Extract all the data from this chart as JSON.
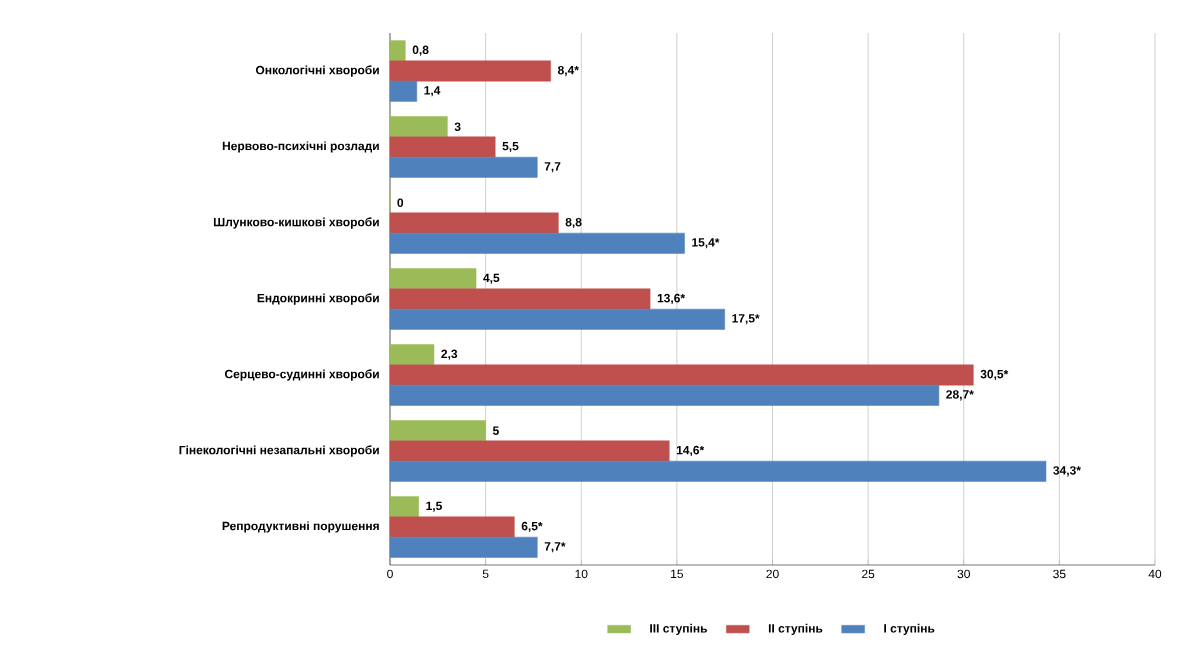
{
  "chart_data": {
    "type": "bar",
    "orientation": "horizontal",
    "categories": [
      "Онкологічні хвороби",
      "Нервово-психічні розлади",
      "Шлунково-кишкові хвороби",
      "Ендокринні хвороби",
      "Серцево-судинні хвороби",
      "Гінекологічні незапальні хвороби",
      "Репродуктивні порушення"
    ],
    "series": [
      {
        "name": "III ступінь",
        "color": "#9bbb59",
        "values": [
          0.8,
          3,
          0,
          4.5,
          2.3,
          5,
          1.5
        ],
        "value_labels": [
          "0,8",
          "3",
          "0",
          "4,5",
          "2,3",
          "5",
          "1,5"
        ]
      },
      {
        "name": "II ступінь",
        "color": "#c0504d",
        "values": [
          8.4,
          5.5,
          8.8,
          13.6,
          30.5,
          14.6,
          6.5
        ],
        "value_labels": [
          "8,4*",
          "5,5",
          "8,8",
          "13,6*",
          "30,5*",
          "14,6*",
          "6,5*"
        ]
      },
      {
        "name": "I ступінь",
        "color": "#4f81bd",
        "values": [
          1.4,
          7.7,
          15.4,
          17.5,
          28.7,
          34.3,
          7.7
        ],
        "value_labels": [
          "1,4",
          "7,7",
          "15,4*",
          "17,5*",
          "28,7*",
          "34,3*",
          "7,7*"
        ]
      }
    ],
    "xlim": [
      0,
      40
    ],
    "xticks": [
      0,
      5,
      10,
      15,
      20,
      25,
      30,
      35,
      40
    ],
    "grid": "x",
    "legend": "bottom"
  }
}
